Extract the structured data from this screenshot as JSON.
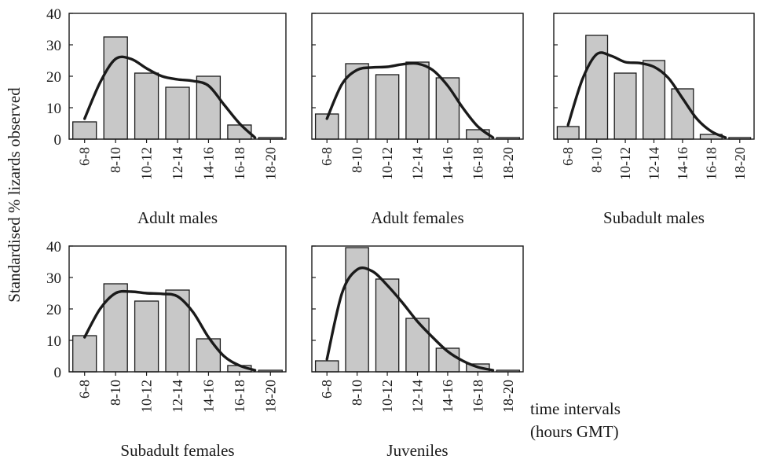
{
  "figure": {
    "ylabel": "Standardised % lizards observed",
    "xlabel_line1": "time intervals",
    "xlabel_line2": "(hours GMT)"
  },
  "chart_data": [
    {
      "type": "bar",
      "title": "Adult males",
      "categories": [
        "6-8",
        "8-10",
        "10-12",
        "12-14",
        "14-16",
        "16-18",
        "18-20"
      ],
      "values": [
        5.5,
        32.5,
        21,
        16.5,
        20,
        4.5,
        0.5
      ],
      "ylim": [
        0,
        40
      ],
      "yticks": [
        0,
        10,
        20,
        30,
        40
      ],
      "curve": [
        [
          0,
          6.5
        ],
        [
          0.5,
          18
        ],
        [
          1,
          25.5
        ],
        [
          1.5,
          25.5
        ],
        [
          2,
          22.5
        ],
        [
          2.5,
          20
        ],
        [
          3,
          19
        ],
        [
          3.5,
          18.5
        ],
        [
          4,
          17
        ],
        [
          4.5,
          11
        ],
        [
          5,
          5
        ],
        [
          5.5,
          0.5
        ]
      ]
    },
    {
      "type": "bar",
      "title": "Adult females",
      "categories": [
        "6-8",
        "8-10",
        "10-12",
        "12-14",
        "14-16",
        "16-18",
        "18-20"
      ],
      "values": [
        8,
        24,
        20.5,
        24.5,
        19.5,
        3,
        0.5
      ],
      "ylim": [
        0,
        40
      ],
      "yticks": [
        0,
        10,
        20,
        30,
        40
      ],
      "curve": [
        [
          0,
          6.5
        ],
        [
          0.5,
          17.5
        ],
        [
          1,
          22
        ],
        [
          1.5,
          22.8
        ],
        [
          2,
          23
        ],
        [
          2.5,
          23.8
        ],
        [
          3,
          24
        ],
        [
          3.5,
          22
        ],
        [
          4,
          17
        ],
        [
          4.5,
          10
        ],
        [
          5,
          4
        ],
        [
          5.5,
          0.5
        ]
      ]
    },
    {
      "type": "bar",
      "title": "Subadult males",
      "categories": [
        "6-8",
        "8-10",
        "10-12",
        "12-14",
        "14-16",
        "16-18",
        "18-20"
      ],
      "values": [
        4,
        33,
        21,
        25,
        16,
        1.5,
        0.5
      ],
      "ylim": [
        0,
        40
      ],
      "yticks": [
        0,
        10,
        20,
        30,
        40
      ],
      "curve": [
        [
          0,
          4.5
        ],
        [
          0.5,
          19
        ],
        [
          1,
          27
        ],
        [
          1.5,
          26.5
        ],
        [
          2,
          24.5
        ],
        [
          2.5,
          24.2
        ],
        [
          3,
          23
        ],
        [
          3.5,
          19.5
        ],
        [
          4,
          13
        ],
        [
          4.5,
          6.5
        ],
        [
          5,
          2.5
        ],
        [
          5.5,
          0.5
        ]
      ]
    },
    {
      "type": "bar",
      "title": "Subadult females",
      "categories": [
        "6-8",
        "8-10",
        "10-12",
        "12-14",
        "14-16",
        "16-18",
        "18-20"
      ],
      "values": [
        11.5,
        28,
        22.5,
        26,
        10.5,
        2,
        0.5
      ],
      "ylim": [
        0,
        40
      ],
      "yticks": [
        0,
        10,
        20,
        30,
        40
      ],
      "curve": [
        [
          0,
          11
        ],
        [
          0.5,
          20
        ],
        [
          1,
          25
        ],
        [
          1.5,
          25.5
        ],
        [
          2,
          25
        ],
        [
          2.5,
          24.8
        ],
        [
          3,
          24
        ],
        [
          3.5,
          19
        ],
        [
          4,
          11
        ],
        [
          4.5,
          5
        ],
        [
          5,
          2
        ],
        [
          5.5,
          0.5
        ]
      ]
    },
    {
      "type": "bar",
      "title": "Juveniles",
      "categories": [
        "6-8",
        "8-10",
        "10-12",
        "12-14",
        "14-16",
        "16-18",
        "18-20"
      ],
      "values": [
        3.5,
        39.5,
        29.5,
        17,
        7.5,
        2.5,
        0.5
      ],
      "ylim": [
        0,
        40
      ],
      "yticks": [
        0,
        10,
        20,
        30,
        40
      ],
      "curve": [
        [
          0,
          4
        ],
        [
          0.5,
          25
        ],
        [
          1,
          32.5
        ],
        [
          1.5,
          32
        ],
        [
          2,
          27.5
        ],
        [
          2.5,
          22
        ],
        [
          3,
          16
        ],
        [
          3.5,
          11
        ],
        [
          4,
          6.5
        ],
        [
          4.5,
          3.5
        ],
        [
          5,
          1.5
        ],
        [
          5.5,
          0.5
        ]
      ]
    }
  ],
  "colors": {
    "bar_fill": "#c8c8c8",
    "bar_stroke": "#1a1a1a",
    "curve": "#1a1a1a",
    "axis": "#1a1a1a"
  }
}
